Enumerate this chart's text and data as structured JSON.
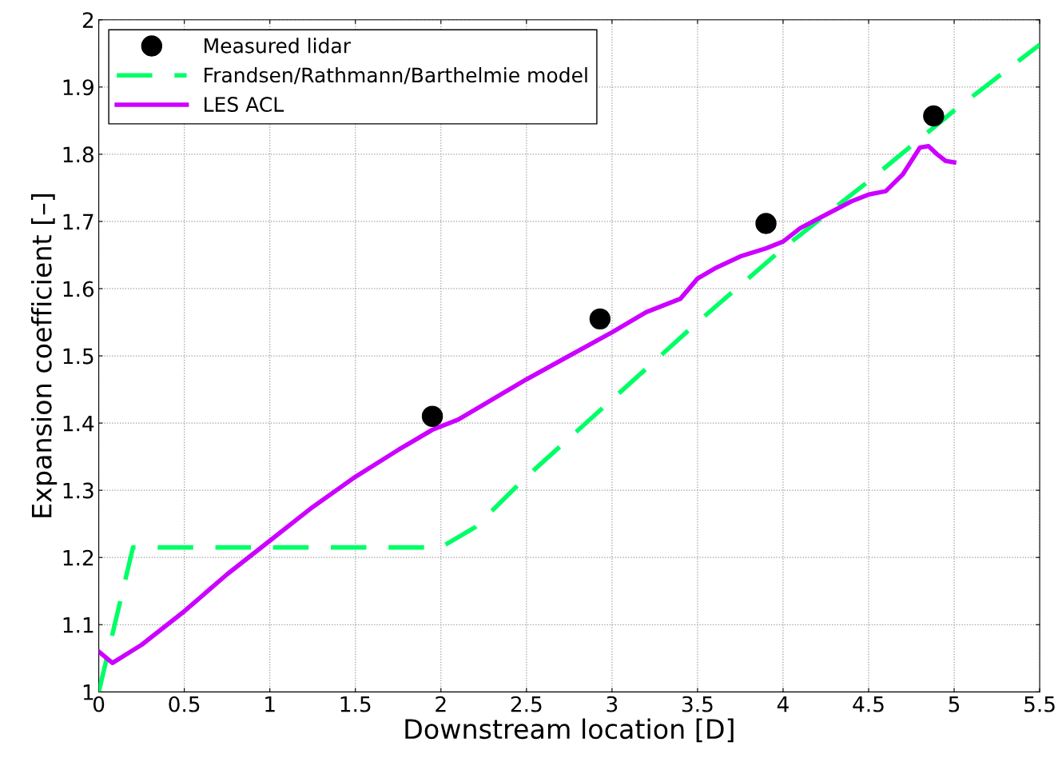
{
  "chart_data": {
    "type": "line",
    "xlabel": "Downstream location [D]",
    "ylabel": "Expansion coefficient [–]",
    "xlim": [
      0,
      5.5
    ],
    "xticks": [
      0,
      0.5,
      1,
      1.5,
      2,
      2.5,
      3,
      3.5,
      4,
      4.5,
      5,
      5.5
    ],
    "ylim": [
      1,
      2
    ],
    "yticks": [
      1,
      1.1,
      1.2,
      1.3,
      1.4,
      1.5,
      1.6,
      1.7,
      1.8,
      1.9,
      2
    ],
    "grid": true,
    "legend": "top left",
    "series": [
      {
        "name": "Measured lidar",
        "type": "scatter",
        "marker": "circle",
        "color": "#000000",
        "x": [
          1.95,
          2.93,
          3.9,
          4.88
        ],
        "values": [
          1.41,
          1.555,
          1.697,
          1.857
        ]
      },
      {
        "name": "Frandsen/Rathmann/Barthelmie model",
        "line_style": "dashed",
        "color": "#00ff66",
        "x": [
          0,
          0.2,
          2.0,
          2.2,
          2.5,
          3,
          3.5,
          4,
          4.5,
          5,
          5.5
        ],
        "values": [
          1,
          1.215,
          1.215,
          1.245,
          1.32,
          1.435,
          1.55,
          1.66,
          1.76,
          1.865,
          1.963
        ]
      },
      {
        "name": "LES ACL",
        "line_style": "solid",
        "color": "#cc00ff",
        "x": [
          0,
          0.08,
          0.25,
          0.5,
          0.75,
          1,
          1.25,
          1.5,
          1.75,
          1.95,
          2.1,
          2.3,
          2.5,
          2.75,
          3,
          3.2,
          3.4,
          3.5,
          3.6,
          3.75,
          3.9,
          4,
          4.1,
          4.25,
          4.4,
          4.5,
          4.6,
          4.7,
          4.8,
          4.85,
          4.9,
          4.95,
          5
        ],
        "values": [
          1.06,
          1.043,
          1.07,
          1.12,
          1.175,
          1.225,
          1.275,
          1.32,
          1.36,
          1.39,
          1.405,
          1.435,
          1.465,
          1.5,
          1.535,
          1.565,
          1.585,
          1.615,
          1.63,
          1.648,
          1.66,
          1.67,
          1.69,
          1.71,
          1.73,
          1.74,
          1.745,
          1.77,
          1.81,
          1.812,
          1.8,
          1.79,
          1.788
        ]
      }
    ]
  }
}
